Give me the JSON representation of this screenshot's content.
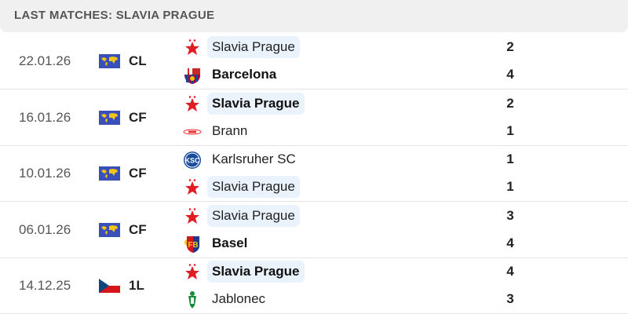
{
  "header": {
    "title": "LAST MATCHES: SLAVIA PRAGUE"
  },
  "matches": [
    {
      "date": "22.01.26",
      "comp": "CL",
      "comp_icon": "world-icon",
      "home": {
        "name": "Slavia Prague",
        "logo": "slavia-star-icon",
        "score": "2",
        "highlight": true,
        "winner": false
      },
      "away": {
        "name": "Barcelona",
        "logo": "barcelona-crest-icon",
        "score": "4",
        "highlight": false,
        "winner": true
      }
    },
    {
      "date": "16.01.26",
      "comp": "CF",
      "comp_icon": "world-icon",
      "home": {
        "name": "Slavia Prague",
        "logo": "slavia-star-icon",
        "score": "2",
        "highlight": true,
        "winner": true
      },
      "away": {
        "name": "Brann",
        "logo": "brann-logo-icon",
        "score": "1",
        "highlight": false,
        "winner": false
      }
    },
    {
      "date": "10.01.26",
      "comp": "CF",
      "comp_icon": "world-icon",
      "home": {
        "name": "Karlsruher SC",
        "logo": "ksc-logo-icon",
        "score": "1",
        "highlight": false,
        "winner": false
      },
      "away": {
        "name": "Slavia Prague",
        "logo": "slavia-star-icon",
        "score": "1",
        "highlight": true,
        "winner": false
      }
    },
    {
      "date": "06.01.26",
      "comp": "CF",
      "comp_icon": "world-icon",
      "home": {
        "name": "Slavia Prague",
        "logo": "slavia-star-icon",
        "score": "3",
        "highlight": true,
        "winner": false
      },
      "away": {
        "name": "Basel",
        "logo": "basel-crest-icon",
        "score": "4",
        "highlight": false,
        "winner": true
      }
    },
    {
      "date": "14.12.25",
      "comp": "1L",
      "comp_icon": "czech-flag-icon",
      "home": {
        "name": "Slavia Prague",
        "logo": "slavia-star-icon",
        "score": "4",
        "highlight": true,
        "winner": true
      },
      "away": {
        "name": "Jablonec",
        "logo": "jablonec-logo-icon",
        "score": "3",
        "highlight": false,
        "winner": false
      }
    }
  ]
}
